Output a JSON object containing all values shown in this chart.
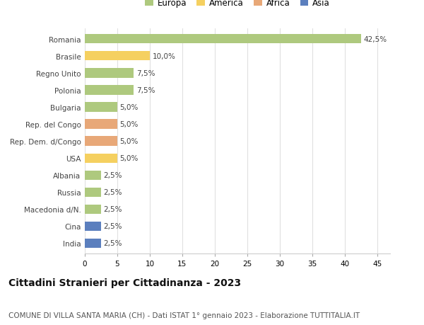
{
  "countries": [
    "Romania",
    "Brasile",
    "Regno Unito",
    "Polonia",
    "Bulgaria",
    "Rep. del Congo",
    "Rep. Dem. d/Congo",
    "USA",
    "Albania",
    "Russia",
    "Macedonia d/N.",
    "Cina",
    "India"
  ],
  "values": [
    42.5,
    10.0,
    7.5,
    7.5,
    5.0,
    5.0,
    5.0,
    5.0,
    2.5,
    2.5,
    2.5,
    2.5,
    2.5
  ],
  "labels": [
    "42,5%",
    "10,0%",
    "7,5%",
    "7,5%",
    "5,0%",
    "5,0%",
    "5,0%",
    "5,0%",
    "2,5%",
    "2,5%",
    "2,5%",
    "2,5%",
    "2,5%"
  ],
  "continents": [
    "Europa",
    "America",
    "Europa",
    "Europa",
    "Europa",
    "Africa",
    "Africa",
    "America",
    "Europa",
    "Europa",
    "Europa",
    "Asia",
    "Asia"
  ],
  "colors": {
    "Europa": "#aec97e",
    "America": "#f5d060",
    "Africa": "#e8a878",
    "Asia": "#5b7fbe"
  },
  "legend_order": [
    "Europa",
    "America",
    "Africa",
    "Asia"
  ],
  "xlim": [
    0,
    47
  ],
  "xticks": [
    0,
    5,
    10,
    15,
    20,
    25,
    30,
    35,
    40,
    45
  ],
  "title": "Cittadini Stranieri per Cittadinanza - 2023",
  "subtitle": "COMUNE DI VILLA SANTA MARIA (CH) - Dati ISTAT 1° gennaio 2023 - Elaborazione TUTTITALIA.IT",
  "background_color": "#ffffff",
  "grid_color": "#e0e0e0",
  "bar_height": 0.55,
  "title_fontsize": 10,
  "subtitle_fontsize": 7.5,
  "label_fontsize": 7.5,
  "tick_fontsize": 7.5,
  "legend_fontsize": 8.5
}
